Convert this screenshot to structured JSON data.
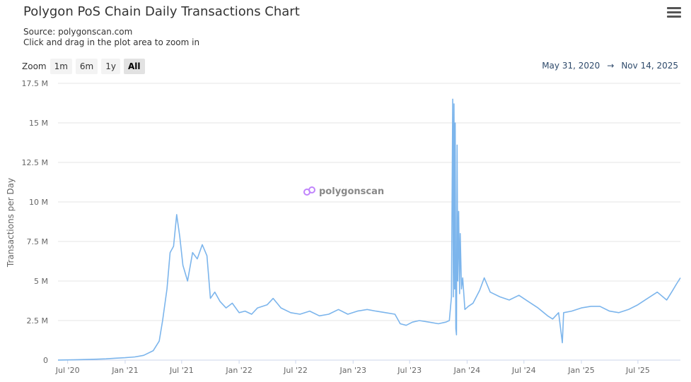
{
  "header": {
    "title": "Polygon PoS Chain Daily Transactions Chart",
    "source": "Source: polygonscan.com",
    "hint": "Click and drag in the plot area to zoom in",
    "menu_icon": "hamburger-menu-icon"
  },
  "zoom": {
    "label": "Zoom",
    "buttons": [
      "1m",
      "6m",
      "1y",
      "All"
    ],
    "active": "All"
  },
  "range": {
    "from": "May 31, 2020",
    "arrow": "→",
    "to": "Nov 14, 2025"
  },
  "watermark": "polygonscan",
  "colors": {
    "line": "#7cb5ec",
    "grid": "#e6e6e6",
    "watermark": "#c084fc"
  },
  "chart_data": {
    "type": "line",
    "ylabel": "Transactions per Day",
    "y_tick_labels": [
      "0",
      "2.5 M",
      "5 M",
      "7.5 M",
      "10 M",
      "12.5 M",
      "15 M",
      "17.5 M"
    ],
    "y_tick_values": [
      0,
      2500000,
      5000000,
      7500000,
      10000000,
      12500000,
      15000000,
      17500000
    ],
    "ylim": [
      0,
      17500000
    ],
    "x_tick_labels": [
      "Jul '20",
      "Jan '21",
      "Jul '21",
      "Jan '22",
      "Jul '22",
      "Jan '23",
      "Jul '23",
      "Jan '24",
      "Jul '24",
      "Jan '25",
      "Jul '25"
    ],
    "x_tick_dates": [
      "2020-07-01",
      "2021-01-01",
      "2021-07-01",
      "2022-01-01",
      "2022-07-01",
      "2023-01-01",
      "2023-07-01",
      "2024-01-01",
      "2024-07-01",
      "2025-01-01",
      "2025-07-01"
    ],
    "xlim": [
      "2020-05-31",
      "2025-11-14"
    ],
    "grid": true,
    "series": [
      {
        "values": [
          [
            "2020-05-31",
            5000
          ],
          [
            "2020-07-01",
            15000
          ],
          [
            "2020-08-01",
            25000
          ],
          [
            "2020-09-01",
            40000
          ],
          [
            "2020-10-01",
            60000
          ],
          [
            "2020-11-01",
            80000
          ],
          [
            "2020-12-01",
            120000
          ],
          [
            "2021-01-01",
            150000
          ],
          [
            "2021-02-01",
            200000
          ],
          [
            "2021-03-01",
            300000
          ],
          [
            "2021-04-01",
            600000
          ],
          [
            "2021-04-20",
            1200000
          ],
          [
            "2021-05-01",
            2500000
          ],
          [
            "2021-05-15",
            4500000
          ],
          [
            "2021-05-25",
            6800000
          ],
          [
            "2021-06-05",
            7200000
          ],
          [
            "2021-06-15",
            9200000
          ],
          [
            "2021-06-25",
            7800000
          ],
          [
            "2021-07-05",
            6000000
          ],
          [
            "2021-07-20",
            5000000
          ],
          [
            "2021-08-05",
            6800000
          ],
          [
            "2021-08-20",
            6400000
          ],
          [
            "2021-09-05",
            7300000
          ],
          [
            "2021-09-20",
            6600000
          ],
          [
            "2021-10-01",
            3900000
          ],
          [
            "2021-10-15",
            4300000
          ],
          [
            "2021-11-01",
            3700000
          ],
          [
            "2021-11-20",
            3300000
          ],
          [
            "2021-12-10",
            3600000
          ],
          [
            "2022-01-01",
            3000000
          ],
          [
            "2022-01-20",
            3100000
          ],
          [
            "2022-02-10",
            2900000
          ],
          [
            "2022-03-01",
            3300000
          ],
          [
            "2022-04-01",
            3500000
          ],
          [
            "2022-04-20",
            3900000
          ],
          [
            "2022-05-15",
            3300000
          ],
          [
            "2022-06-15",
            3000000
          ],
          [
            "2022-07-15",
            2900000
          ],
          [
            "2022-08-15",
            3100000
          ],
          [
            "2022-09-15",
            2800000
          ],
          [
            "2022-10-15",
            2900000
          ],
          [
            "2022-11-15",
            3200000
          ],
          [
            "2022-12-15",
            2900000
          ],
          [
            "2023-01-15",
            3100000
          ],
          [
            "2023-02-15",
            3200000
          ],
          [
            "2023-03-15",
            3100000
          ],
          [
            "2023-04-15",
            3000000
          ],
          [
            "2023-05-15",
            2900000
          ],
          [
            "2023-06-01",
            2300000
          ],
          [
            "2023-06-20",
            2200000
          ],
          [
            "2023-07-10",
            2400000
          ],
          [
            "2023-08-01",
            2500000
          ],
          [
            "2023-09-01",
            2400000
          ],
          [
            "2023-10-01",
            2300000
          ],
          [
            "2023-10-25",
            2400000
          ],
          [
            "2023-11-05",
            2500000
          ],
          [
            "2023-11-12",
            4000000
          ],
          [
            "2023-11-16",
            16500000
          ],
          [
            "2023-11-18",
            4000000
          ],
          [
            "2023-11-20",
            16200000
          ],
          [
            "2023-11-22",
            4500000
          ],
          [
            "2023-11-24",
            15000000
          ],
          [
            "2023-11-26",
            2000000
          ],
          [
            "2023-11-28",
            1600000
          ],
          [
            "2023-11-30",
            13600000
          ],
          [
            "2023-12-02",
            5000000
          ],
          [
            "2023-12-05",
            9400000
          ],
          [
            "2023-12-08",
            4200000
          ],
          [
            "2023-12-10",
            8000000
          ],
          [
            "2023-12-14",
            4500000
          ],
          [
            "2023-12-18",
            5200000
          ],
          [
            "2023-12-25",
            3200000
          ],
          [
            "2024-01-05",
            3400000
          ],
          [
            "2024-01-20",
            3600000
          ],
          [
            "2024-02-10",
            4400000
          ],
          [
            "2024-02-25",
            5200000
          ],
          [
            "2024-03-15",
            4300000
          ],
          [
            "2024-04-15",
            4000000
          ],
          [
            "2024-05-15",
            3800000
          ],
          [
            "2024-06-15",
            4100000
          ],
          [
            "2024-07-15",
            3700000
          ],
          [
            "2024-08-15",
            3300000
          ],
          [
            "2024-09-15",
            2800000
          ],
          [
            "2024-10-01",
            2600000
          ],
          [
            "2024-10-20",
            3000000
          ],
          [
            "2024-11-01",
            1100000
          ],
          [
            "2024-11-05",
            3000000
          ],
          [
            "2024-12-01",
            3100000
          ],
          [
            "2025-01-01",
            3300000
          ],
          [
            "2025-02-01",
            3400000
          ],
          [
            "2025-03-01",
            3400000
          ],
          [
            "2025-04-01",
            3100000
          ],
          [
            "2025-05-01",
            3000000
          ],
          [
            "2025-06-01",
            3200000
          ],
          [
            "2025-07-01",
            3500000
          ],
          [
            "2025-08-01",
            3900000
          ],
          [
            "2025-09-01",
            4300000
          ],
          [
            "2025-10-01",
            3800000
          ],
          [
            "2025-10-20",
            4400000
          ],
          [
            "2025-11-01",
            4800000
          ],
          [
            "2025-11-14",
            5200000
          ]
        ]
      }
    ]
  }
}
